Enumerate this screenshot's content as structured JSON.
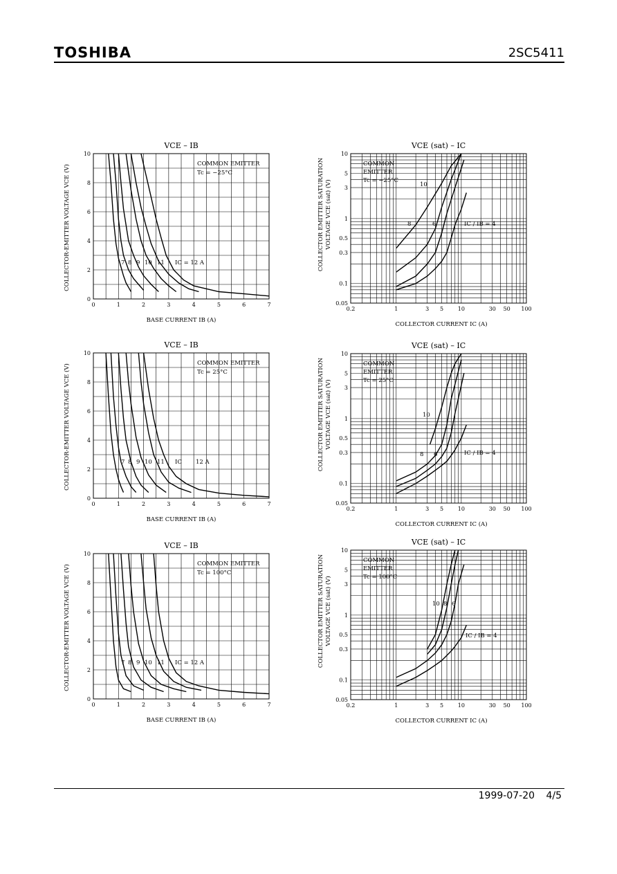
{
  "header": {
    "brand": "TOSHIBA",
    "part_number": "2SC5411"
  },
  "footer": {
    "date": "1999-07-20",
    "page": "4/5"
  },
  "chart_data": [
    {
      "id": "ib_m25",
      "type": "line",
      "title": "VCE – IB",
      "xlabel": "BASE CURRENT  IB  (A)",
      "ylabel": "COLLECTOR-EMITTER VOLTAGE  VCE  (V)",
      "xlim": [
        0,
        7
      ],
      "ylim": [
        0,
        10
      ],
      "xticks": [
        "0",
        "1",
        "2",
        "3",
        "4",
        "5",
        "6",
        "7"
      ],
      "yticks": [
        "0",
        "2",
        "4",
        "6",
        "8",
        "10"
      ],
      "annotation": [
        "COMMON EMITTER",
        "Tc = −25°C"
      ],
      "series_labels": [
        "7",
        "8",
        "9",
        "10",
        "11",
        "IC = 12 A"
      ],
      "series": [
        {
          "name": "7",
          "x": [
            0.6,
            0.7,
            0.8,
            0.9,
            1.0,
            1.1,
            1.2,
            1.3,
            1.4,
            1.5
          ],
          "y": [
            10,
            8,
            5.5,
            3.8,
            2.8,
            2.2,
            1.6,
            1.1,
            0.8,
            0.5
          ]
        },
        {
          "name": "8",
          "x": [
            0.8,
            0.9,
            1.0,
            1.1,
            1.2,
            1.4,
            1.6,
            1.8,
            2.0
          ],
          "y": [
            10,
            8,
            5.5,
            4,
            3,
            2,
            1.4,
            1.0,
            0.6
          ]
        },
        {
          "name": "9",
          "x": [
            1.0,
            1.1,
            1.2,
            1.4,
            1.6,
            1.8,
            2.0,
            2.3,
            2.6
          ],
          "y": [
            10,
            8,
            6.2,
            4,
            3,
            2.2,
            1.6,
            1.0,
            0.5
          ]
        },
        {
          "name": "10",
          "x": [
            1.3,
            1.5,
            1.7,
            1.9,
            2.1,
            2.4,
            2.7,
            3.0,
            3.3
          ],
          "y": [
            10,
            7.5,
            5.5,
            4,
            3,
            2.1,
            1.4,
            0.9,
            0.5
          ]
        },
        {
          "name": "11",
          "x": [
            1.5,
            1.7,
            1.9,
            2.1,
            2.3,
            2.6,
            3.0,
            3.4,
            3.8,
            4.2
          ],
          "y": [
            10,
            8,
            6.3,
            5,
            3.8,
            2.6,
            1.7,
            1.1,
            0.7,
            0.5
          ]
        },
        {
          "name": "IC = 12 A",
          "x": [
            1.9,
            2.1,
            2.3,
            2.5,
            2.7,
            2.9,
            3.2,
            3.6,
            4.0,
            5.0,
            6.0,
            7.0
          ],
          "y": [
            10,
            8.5,
            7,
            5.5,
            4.2,
            3,
            2,
            1.3,
            0.9,
            0.5,
            0.35,
            0.2
          ]
        }
      ]
    },
    {
      "id": "sat_m25",
      "type": "line",
      "title": "VCE (sat) – IC",
      "xlabel": "COLLECTOR CURRENT  IC  (A)",
      "ylabel": "COLLECTOR EMITTER SATURATION VOLTAGE  VCE (sat)  (V)",
      "xscale": "log",
      "yscale": "log",
      "xlim": [
        0.2,
        100
      ],
      "ylim": [
        0.05,
        10
      ],
      "xticks": [
        "0.2",
        "1",
        "3",
        "5",
        "10",
        "30",
        "50",
        "100"
      ],
      "yticks": [
        "0.05",
        "0.1",
        "0.3",
        "0.5",
        "1",
        "3",
        "5",
        "10"
      ],
      "annotation": [
        "COMMON",
        "EMITTER",
        "Tc = −25°C"
      ],
      "series_labels": [
        "10",
        "8",
        "6",
        "IC / IB = 4"
      ],
      "series": [
        {
          "name": "10",
          "x": [
            1,
            2,
            3,
            5,
            7,
            10
          ],
          "y": [
            0.35,
            0.8,
            1.5,
            3.5,
            6.5,
            10
          ]
        },
        {
          "name": "8",
          "x": [
            1,
            2,
            3,
            4,
            5,
            7,
            10
          ],
          "y": [
            0.15,
            0.25,
            0.4,
            0.7,
            1.5,
            4,
            10
          ]
        },
        {
          "name": "6",
          "x": [
            1,
            2,
            3,
            4,
            5,
            6,
            8,
            11
          ],
          "y": [
            0.09,
            0.13,
            0.2,
            0.3,
            0.6,
            1.2,
            3,
            8
          ]
        },
        {
          "name": "IC / IB = 4",
          "x": [
            1,
            2,
            3,
            4,
            5,
            6,
            7,
            8,
            10,
            12
          ],
          "y": [
            0.08,
            0.1,
            0.13,
            0.17,
            0.22,
            0.3,
            0.5,
            0.8,
            1.4,
            2.5
          ]
        }
      ]
    },
    {
      "id": "ib_25",
      "type": "line",
      "title": "VCE – IB",
      "xlabel": "BASE CURRENT  IB  (A)",
      "ylabel": "COLLECTOR-EMITTER VOLTAGE  VCE  (V)",
      "xlim": [
        0,
        7
      ],
      "ylim": [
        0,
        10
      ],
      "xticks": [
        "0",
        "1",
        "2",
        "3",
        "4",
        "5",
        "6",
        "7"
      ],
      "yticks": [
        "0",
        "2",
        "4",
        "6",
        "8",
        "10"
      ],
      "annotation": [
        "COMMON EMITTER",
        "Tc = 25°C"
      ],
      "series_labels": [
        "7",
        "8",
        "9",
        "10",
        "11",
        "IC",
        "12 A"
      ],
      "series": [
        {
          "name": "7",
          "x": [
            0.5,
            0.6,
            0.7,
            0.8,
            0.9,
            1.0,
            1.1,
            1.2
          ],
          "y": [
            10,
            7,
            4.5,
            3,
            2,
            1.3,
            0.8,
            0.4
          ]
        },
        {
          "name": "8",
          "x": [
            0.7,
            0.8,
            0.9,
            1.0,
            1.1,
            1.3,
            1.5,
            1.7
          ],
          "y": [
            10,
            7,
            5,
            3.5,
            2.5,
            1.5,
            0.8,
            0.4
          ]
        },
        {
          "name": "9",
          "x": [
            1.0,
            1.1,
            1.2,
            1.3,
            1.5,
            1.7,
            1.9,
            2.2
          ],
          "y": [
            10,
            7.5,
            5.5,
            4,
            2.5,
            1.5,
            0.9,
            0.4
          ]
        },
        {
          "name": "10",
          "x": [
            1.3,
            1.4,
            1.5,
            1.7,
            1.9,
            2.2,
            2.5,
            2.9
          ],
          "y": [
            10,
            8,
            6.5,
            4.2,
            2.8,
            1.6,
            0.9,
            0.4
          ]
        },
        {
          "name": "11",
          "x": [
            1.8,
            1.9,
            2.0,
            2.2,
            2.4,
            2.7,
            3.0,
            3.4,
            3.9
          ],
          "y": [
            10,
            8,
            6.5,
            4.5,
            3,
            1.8,
            1.1,
            0.7,
            0.4
          ]
        },
        {
          "name": "IC = 12 A",
          "x": [
            2.0,
            2.2,
            2.4,
            2.6,
            2.8,
            3.0,
            3.3,
            3.7,
            4.2,
            5.0,
            6.0,
            7.0
          ],
          "y": [
            10,
            7.5,
            5.5,
            4,
            3,
            2.2,
            1.5,
            1.0,
            0.6,
            0.35,
            0.2,
            0.1
          ]
        }
      ]
    },
    {
      "id": "sat_25",
      "type": "line",
      "title": "VCE (sat) – IC",
      "xlabel": "COLLECTOR CURRENT  IC  (A)",
      "ylabel": "COLLECTOR EMITTER SATURATION VOLTAGE  VCE (sat)  (V)",
      "xscale": "log",
      "yscale": "log",
      "xlim": [
        0.2,
        100
      ],
      "ylim": [
        0.05,
        10
      ],
      "xticks": [
        "0.2",
        "1",
        "3",
        "5",
        "10",
        "30",
        "50",
        "100"
      ],
      "yticks": [
        "0.05",
        "0.1",
        "0.3",
        "0.5",
        "1",
        "3",
        "5",
        "10"
      ],
      "annotation": [
        "COMMON",
        "EMITTER",
        "Tc = 25°C"
      ],
      "series_labels": [
        "10",
        "8",
        "6",
        "IC / IB = 4"
      ],
      "series": [
        {
          "name": "10",
          "x": [
            3.3,
            4,
            5,
            6,
            7,
            8,
            10
          ],
          "y": [
            0.4,
            0.7,
            1.5,
            3,
            5,
            7,
            10
          ]
        },
        {
          "name": "8",
          "x": [
            1,
            2,
            3,
            4,
            5,
            6,
            7,
            10
          ],
          "y": [
            0.11,
            0.15,
            0.2,
            0.27,
            0.4,
            0.8,
            2,
            8
          ]
        },
        {
          "name": "6",
          "x": [
            1,
            2,
            3,
            4,
            5,
            6,
            7,
            8,
            11
          ],
          "y": [
            0.09,
            0.12,
            0.16,
            0.2,
            0.26,
            0.35,
            0.6,
            1.2,
            5
          ]
        },
        {
          "name": "IC / IB = 4",
          "x": [
            1,
            2,
            3,
            4,
            5,
            6,
            7,
            8,
            10,
            12
          ],
          "y": [
            0.07,
            0.1,
            0.13,
            0.16,
            0.19,
            0.22,
            0.27,
            0.33,
            0.5,
            0.8
          ]
        }
      ]
    },
    {
      "id": "ib_100",
      "type": "line",
      "title": "VCE – IB",
      "xlabel": "BASE CURRENT  IB  (A)",
      "ylabel": "COLLECTOR-EMITTER VOLTAGE  VCE  (V)",
      "xlim": [
        0,
        7
      ],
      "ylim": [
        0,
        10
      ],
      "xticks": [
        "0",
        "1",
        "2",
        "3",
        "4",
        "5",
        "6",
        "7"
      ],
      "yticks": [
        "0",
        "2",
        "4",
        "6",
        "8",
        "10"
      ],
      "annotation": [
        "COMMON EMITTER",
        "Tc = 100°C"
      ],
      "series_labels": [
        "7",
        "8",
        "9",
        "10",
        "11",
        "IC = 12 A"
      ],
      "series": [
        {
          "name": "7",
          "x": [
            0.6,
            0.7,
            0.8,
            0.9,
            1.0,
            1.2,
            1.5
          ],
          "y": [
            10,
            7,
            4,
            2.2,
            1.3,
            0.7,
            0.5
          ]
        },
        {
          "name": "8",
          "x": [
            0.8,
            0.9,
            1.0,
            1.1,
            1.3,
            1.6,
            2.0
          ],
          "y": [
            10,
            7,
            4.5,
            3,
            1.6,
            0.9,
            0.6
          ]
        },
        {
          "name": "9",
          "x": [
            1.1,
            1.2,
            1.3,
            1.4,
            1.6,
            1.9,
            2.3,
            2.8
          ],
          "y": [
            10,
            7.5,
            5.2,
            3.6,
            2.2,
            1.3,
            0.8,
            0.5
          ]
        },
        {
          "name": "10",
          "x": [
            1.4,
            1.5,
            1.6,
            1.8,
            2.0,
            2.3,
            2.7,
            3.2,
            3.7
          ],
          "y": [
            10,
            7.8,
            6,
            3.8,
            2.6,
            1.6,
            1.0,
            0.7,
            0.5
          ]
        },
        {
          "name": "11",
          "x": [
            1.9,
            2.0,
            2.1,
            2.3,
            2.5,
            2.8,
            3.2,
            3.7,
            4.3
          ],
          "y": [
            10,
            8,
            6.2,
            4.2,
            3,
            1.9,
            1.2,
            0.8,
            0.6
          ]
        },
        {
          "name": "IC = 12 A",
          "x": [
            2.4,
            2.5,
            2.6,
            2.8,
            3.0,
            3.3,
            3.7,
            4.2,
            5.0,
            6.0,
            7.0
          ],
          "y": [
            10,
            7.8,
            6,
            4,
            2.8,
            1.8,
            1.2,
            0.9,
            0.6,
            0.45,
            0.35
          ]
        }
      ]
    },
    {
      "id": "sat_100",
      "type": "line",
      "title": "VCE (sat) – IC",
      "xlabel": "COLLECTOR CURRENT  IC  (A)",
      "ylabel": "COLLECTOR EMITTER SATURATION VOLTAGE  VCE (sat)  (V)",
      "xscale": "log",
      "yscale": "log",
      "xlim": [
        0.2,
        100
      ],
      "ylim": [
        0.05,
        10
      ],
      "xticks": [
        "0.2",
        "1",
        "3",
        "5",
        "10",
        "30",
        "50",
        "100"
      ],
      "yticks": [
        "0.05",
        "0.1",
        "0.3",
        "0.5",
        "1",
        "3",
        "5",
        "10"
      ],
      "annotation": [
        "COMMON",
        "EMITTER",
        "Tc = 100°C"
      ],
      "series_labels": [
        "10",
        "8",
        "6",
        "IC / IB = 4"
      ],
      "series": [
        {
          "name": "10",
          "x": [
            3,
            4,
            5,
            6,
            7,
            8
          ],
          "y": [
            0.3,
            0.5,
            1.2,
            3,
            6,
            10
          ]
        },
        {
          "name": "8",
          "x": [
            3,
            4,
            5,
            6,
            7,
            8,
            9
          ],
          "y": [
            0.25,
            0.35,
            0.6,
            1.3,
            3,
            6,
            10
          ]
        },
        {
          "name": "6",
          "x": [
            1,
            2,
            3,
            4,
            5,
            6,
            7,
            8,
            9,
            11
          ],
          "y": [
            0.11,
            0.15,
            0.2,
            0.26,
            0.35,
            0.5,
            0.8,
            1.5,
            3,
            6
          ]
        },
        {
          "name": "IC / IB = 4",
          "x": [
            1,
            2,
            3,
            4,
            5,
            6,
            7,
            8,
            10,
            12
          ],
          "y": [
            0.08,
            0.11,
            0.14,
            0.17,
            0.2,
            0.24,
            0.28,
            0.33,
            0.45,
            0.7
          ]
        }
      ]
    }
  ]
}
